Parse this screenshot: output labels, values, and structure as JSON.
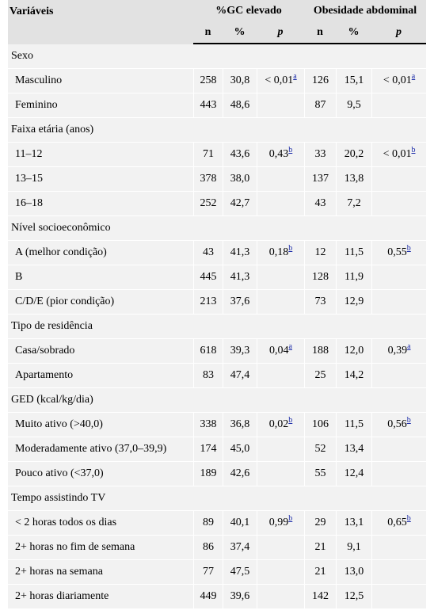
{
  "header": {
    "variaveis": "Variáveis",
    "group1": "%GC elevado",
    "group2": "Obesidade abdominal",
    "n": "n",
    "pct": "%",
    "p": "p"
  },
  "sections": [
    {
      "title": "Sexo",
      "rows": [
        {
          "label": "Masculino",
          "n1": "258",
          "pct1": "30,8",
          "p1": "< 0,01",
          "s1": "a",
          "n2": "126",
          "pct2": "15,1",
          "p2": "< 0,01",
          "s2": "a"
        },
        {
          "label": "Feminino",
          "n1": "443",
          "pct1": "48,6",
          "p1": "",
          "s1": "",
          "n2": "87",
          "pct2": "9,5",
          "p2": "",
          "s2": ""
        }
      ]
    },
    {
      "title": "Faixa etária (anos)",
      "rows": [
        {
          "label": "11–12",
          "n1": "71",
          "pct1": "43,6",
          "p1": "0,43",
          "s1": "b",
          "n2": "33",
          "pct2": "20,2",
          "p2": "< 0,01",
          "s2": "b"
        },
        {
          "label": "13–15",
          "n1": "378",
          "pct1": "38,0",
          "p1": "",
          "s1": "",
          "n2": "137",
          "pct2": "13,8",
          "p2": "",
          "s2": ""
        },
        {
          "label": "16–18",
          "n1": "252",
          "pct1": "42,7",
          "p1": "",
          "s1": "",
          "n2": "43",
          "pct2": "7,2",
          "p2": "",
          "s2": ""
        }
      ]
    },
    {
      "title": "Nível socioeconômico",
      "rows": [
        {
          "label": "A (melhor condição)",
          "n1": "43",
          "pct1": "41,3",
          "p1": "0,18",
          "s1": "b",
          "n2": "12",
          "pct2": "11,5",
          "p2": "0,55",
          "s2": "b"
        },
        {
          "label": "B",
          "n1": "445",
          "pct1": "41,3",
          "p1": "",
          "s1": "",
          "n2": "128",
          "pct2": "11,9",
          "p2": "",
          "s2": ""
        },
        {
          "label": "C/D/E (pior condição)",
          "n1": "213",
          "pct1": "37,6",
          "p1": "",
          "s1": "",
          "n2": "73",
          "pct2": "12,9",
          "p2": "",
          "s2": ""
        }
      ]
    },
    {
      "title": "Tipo de residência",
      "rows": [
        {
          "label": "Casa/sobrado",
          "n1": "618",
          "pct1": "39,3",
          "p1": "0,04",
          "s1": "a",
          "n2": "188",
          "pct2": "12,0",
          "p2": "0,39",
          "s2": "a"
        },
        {
          "label": "Apartamento",
          "n1": "83",
          "pct1": "47,4",
          "p1": "",
          "s1": "",
          "n2": "25",
          "pct2": "14,2",
          "p2": "",
          "s2": ""
        }
      ]
    },
    {
      "title": "GED (kcal/kg/dia)",
      "rows": [
        {
          "label": "Muito ativo (>40,0)",
          "n1": "338",
          "pct1": "36,8",
          "p1": "0,02",
          "s1": "b",
          "n2": "106",
          "pct2": "11,5",
          "p2": "0,56",
          "s2": "b"
        },
        {
          "label": "Moderadamente ativo (37,0–39,9)",
          "n1": "174",
          "pct1": "45,0",
          "p1": "",
          "s1": "",
          "n2": "52",
          "pct2": "13,4",
          "p2": "",
          "s2": ""
        },
        {
          "label": "Pouco ativo (<37,0)",
          "n1": "189",
          "pct1": "42,6",
          "p1": "",
          "s1": "",
          "n2": "55",
          "pct2": "12,4",
          "p2": "",
          "s2": ""
        }
      ]
    },
    {
      "title": "Tempo assistindo TV",
      "rows": [
        {
          "label": "< 2 horas todos os dias",
          "n1": "89",
          "pct1": "40,1",
          "p1": "0,99",
          "s1": "b",
          "n2": "29",
          "pct2": "13,1",
          "p2": "0,65",
          "s2": "b"
        },
        {
          "label": "2+ horas no fim de semana",
          "n1": "86",
          "pct1": "37,4",
          "p1": "",
          "s1": "",
          "n2": "21",
          "pct2": "9,1",
          "p2": "",
          "s2": ""
        },
        {
          "label": "2+ horas na semana",
          "n1": "77",
          "pct1": "47,5",
          "p1": "",
          "s1": "",
          "n2": "21",
          "pct2": "13,0",
          "p2": "",
          "s2": ""
        },
        {
          "label": "2+ horas diariamente",
          "n1": "449",
          "pct1": "39,6",
          "p1": "",
          "s1": "",
          "n2": "142",
          "pct2": "12,5",
          "p2": "",
          "s2": ""
        }
      ]
    }
  ]
}
